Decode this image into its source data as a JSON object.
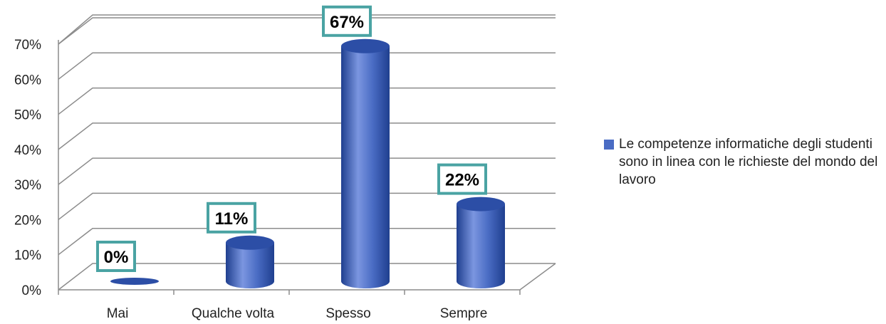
{
  "chart_data": {
    "type": "bar",
    "categories": [
      "Mai",
      "Qualche volta",
      "Spesso",
      "Sempre"
    ],
    "series": [
      {
        "name": "Le competenze informatiche degli studenti sono in linea con le richieste del mondo del lavoro",
        "values": [
          0,
          11,
          67,
          22
        ]
      }
    ],
    "data_labels": [
      "0%",
      "11%",
      "67%",
      "22%"
    ],
    "yticks": [
      "0%",
      "10%",
      "20%",
      "30%",
      "40%",
      "50%",
      "60%",
      "70%"
    ],
    "ylim": [
      0,
      70
    ],
    "grid": true,
    "legend_position": "right",
    "title": "",
    "xlabel": "",
    "ylabel": "",
    "style": "3d-cylinder"
  },
  "colors": {
    "bar_light": "#7b96e0",
    "bar_mid": "#4a6cc4",
    "bar_dark": "#1f3f8f",
    "bar_top": "#2c4ea6",
    "label_border": "#4aa3a3",
    "grid": "#8c8c8c",
    "legend_swatch": "#4a6cc4"
  }
}
